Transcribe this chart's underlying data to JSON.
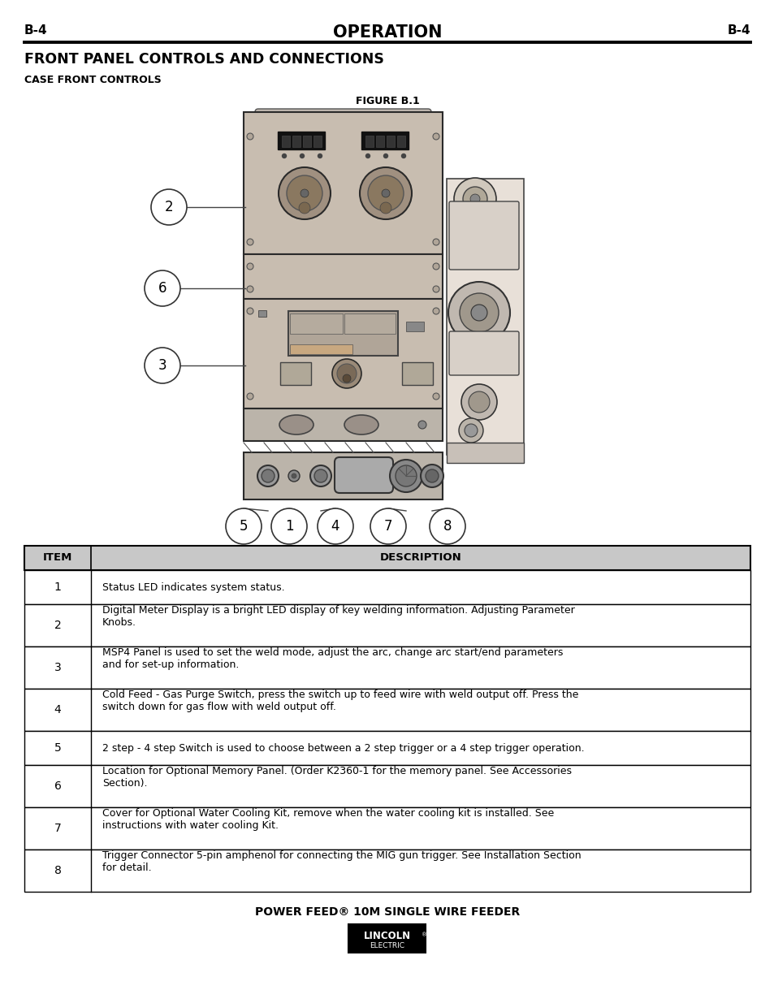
{
  "page_label_left": "B-4",
  "page_label_right": "B-4",
  "header_title": "OPERATION",
  "section_title": "FRONT PANEL CONTROLS AND CONNECTIONS",
  "subsection": "CASE FRONT CONTROLS",
  "figure_label": "FIGURE B.1",
  "table_header_item": "ITEM",
  "table_header_desc": "DESCRIPTION",
  "table_rows": [
    {
      "item": "1",
      "desc": "Status LED indicates system status.",
      "lines": 1
    },
    {
      "item": "2",
      "desc": "Digital Meter Display is a bright LED display of key welding information. Adjusting Parameter\nKnobs.",
      "lines": 2
    },
    {
      "item": "3",
      "desc": "MSP4 Panel is used to set the weld mode, adjust the arc, change arc start/end parameters\nand for set-up information.",
      "lines": 2
    },
    {
      "item": "4",
      "desc": "Cold Feed - Gas Purge Switch, press the switch up to feed wire with weld output off. Press the\nswitch down for gas flow with weld output off.",
      "lines": 2
    },
    {
      "item": "5",
      "desc": "2 step - 4 step Switch is used to choose between a 2 step trigger or a 4 step trigger operation.",
      "lines": 1
    },
    {
      "item": "6",
      "desc": "Location for Optional Memory Panel. (Order K2360-1 for the memory panel. See Accessories\nSection).",
      "lines": 2
    },
    {
      "item": "7",
      "desc": "Cover for Optional Water Cooling Kit, remove when the water cooling kit is installed. See\ninstructions with water cooling Kit.",
      "lines": 2
    },
    {
      "item": "8",
      "desc": "Trigger Connector 5-pin amphenol for connecting the MIG gun trigger. See Installation Section\nfor detail.",
      "lines": 2
    }
  ],
  "footer_text": "POWER FEED® 10M SINGLE WIRE FEEDER",
  "bg_color": "#ffffff",
  "text_color": "#000000",
  "machine_color": "#c8bdb0",
  "machine_dark": "#b0a598",
  "machine_edge": "#2a2a2a",
  "table_header_bg": "#c8c8c8"
}
